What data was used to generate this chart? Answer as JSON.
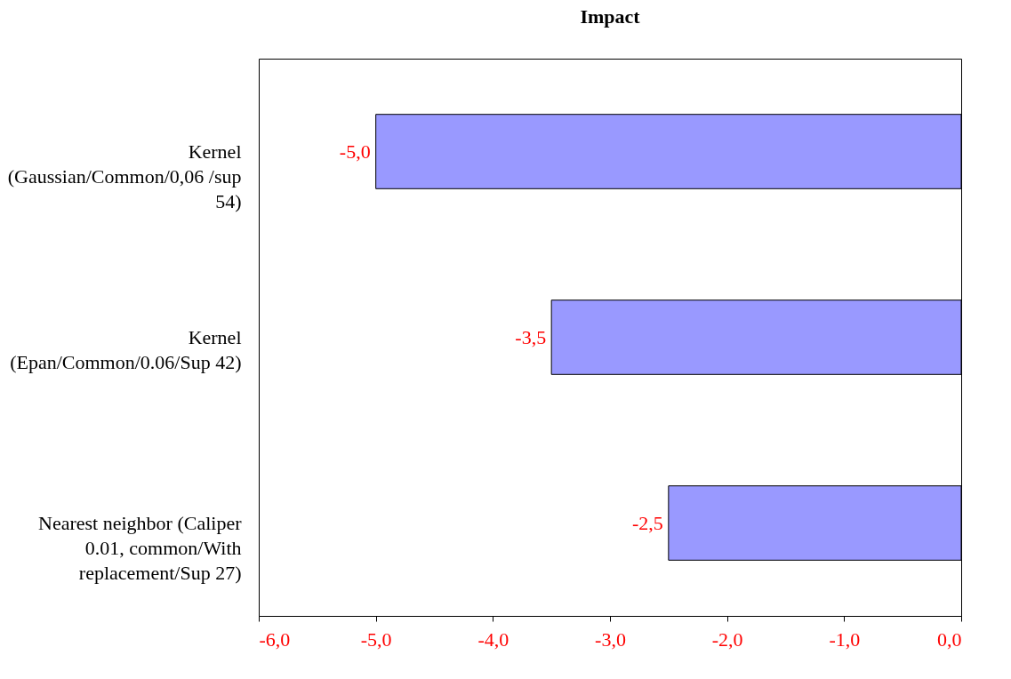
{
  "chart_data": {
    "type": "bar",
    "orientation": "horizontal",
    "title": "Impact",
    "categories": [
      "Kernel (Gaussian/Common/0,06 /sup 54)",
      "Kernel (Epan/Common/0.06/Sup 42)",
      "Nearest neighbor (Caliper 0.01, common/With replacement/Sup 27)"
    ],
    "values": [
      -5.0,
      -3.5,
      -2.5
    ],
    "value_labels": [
      "-5,0",
      "-3,5",
      "-2,5"
    ],
    "color": "#9999ff",
    "xlim": [
      -6,
      0
    ],
    "xticks": [
      {
        "value": -6,
        "label": "-6,0"
      },
      {
        "value": -5,
        "label": "-5,0"
      },
      {
        "value": -4,
        "label": "-4,0"
      },
      {
        "value": -3,
        "label": "-3,0"
      },
      {
        "value": -2,
        "label": "-2,0"
      },
      {
        "value": -1,
        "label": "-1,0"
      },
      {
        "value": 0,
        "label": "0,0"
      }
    ],
    "grid": false
  }
}
